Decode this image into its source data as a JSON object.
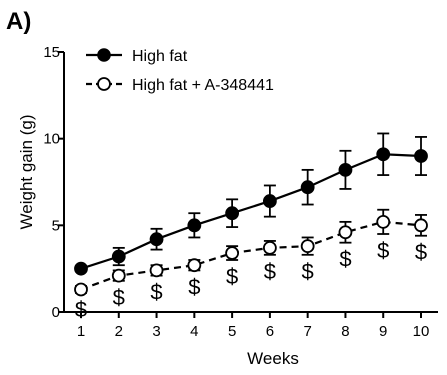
{
  "chart_data": {
    "type": "line",
    "panel_label": "A)",
    "title": "",
    "xlabel": "Weeks",
    "ylabel": "Weight gain (g)",
    "xlim": [
      0.55,
      10.45
    ],
    "ylim": [
      0,
      15
    ],
    "x_ticks": [
      1,
      2,
      3,
      4,
      5,
      6,
      7,
      8,
      9,
      10
    ],
    "y_ticks": [
      0,
      5,
      10,
      15
    ],
    "legend_placement": "top-left",
    "significance_marker": "$",
    "series": [
      {
        "name": "High fat",
        "marker": "filled-circle",
        "line_style": "solid",
        "x": [
          1,
          2,
          3,
          4,
          5,
          6,
          7,
          8,
          9,
          10
        ],
        "y": [
          2.5,
          3.2,
          4.2,
          5.0,
          5.7,
          6.4,
          7.2,
          8.2,
          9.1,
          9.0
        ],
        "error": [
          0.15,
          0.5,
          0.6,
          0.7,
          0.8,
          0.9,
          1.0,
          1.1,
          1.2,
          1.1
        ]
      },
      {
        "name": "High fat + A-348441",
        "marker": "open-circle",
        "line_style": "dashed",
        "x": [
          1,
          2,
          3,
          4,
          5,
          6,
          7,
          8,
          9,
          10
        ],
        "y": [
          1.3,
          2.1,
          2.4,
          2.7,
          3.4,
          3.7,
          3.8,
          4.6,
          5.2,
          5.0
        ],
        "error": [
          0.2,
          0.3,
          0.3,
          0.3,
          0.4,
          0.4,
          0.5,
          0.6,
          0.7,
          0.6
        ],
        "significance_labels": [
          "$",
          "$",
          "$",
          "$",
          "$",
          "$",
          "$",
          "$",
          "$",
          "$"
        ]
      }
    ]
  }
}
